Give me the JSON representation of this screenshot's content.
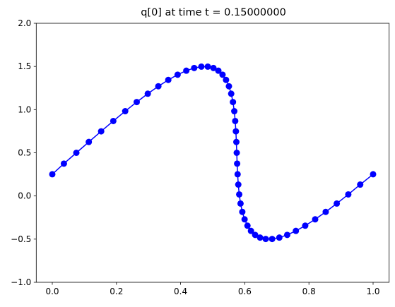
{
  "chart_data": {
    "type": "line",
    "title": "q[0] at time t =     0.15000000",
    "xlim": [
      -0.05,
      1.05
    ],
    "ylim": [
      -1.0,
      2.0
    ],
    "xticks": [
      {
        "value": 0.0,
        "label": "0.0"
      },
      {
        "value": 0.2,
        "label": "0.2"
      },
      {
        "value": 0.4,
        "label": "0.4"
      },
      {
        "value": 0.6,
        "label": "0.6"
      },
      {
        "value": 0.8,
        "label": "0.8"
      },
      {
        "value": 1.0,
        "label": "1.0"
      }
    ],
    "yticks": [
      {
        "value": -1.0,
        "label": "−1.0"
      },
      {
        "value": -0.5,
        "label": "−0.5"
      },
      {
        "value": 0.0,
        "label": "0.0"
      },
      {
        "value": 0.5,
        "label": "0.5"
      },
      {
        "value": 1.0,
        "label": "1.0"
      },
      {
        "value": 1.5,
        "label": "1.5"
      },
      {
        "value": 2.0,
        "label": "2.0"
      }
    ],
    "grid": false,
    "x": [
      0.0,
      0.0362,
      0.075,
      0.1138,
      0.1523,
      0.1902,
      0.2273,
      0.2632,
      0.2977,
      0.3306,
      0.3616,
      0.3907,
      0.4177,
      0.4423,
      0.4647,
      0.4847,
      0.5023,
      0.5177,
      0.5307,
      0.5416,
      0.5506,
      0.5577,
      0.5632,
      0.5673,
      0.5702,
      0.5723,
      0.5738,
      0.575,
      0.5762,
      0.5777,
      0.5798,
      0.5827,
      0.5868,
      0.5923,
      0.5994,
      0.6084,
      0.6193,
      0.6323,
      0.6477,
      0.6653,
      0.6853,
      0.7077,
      0.7323,
      0.7593,
      0.7884,
      0.8194,
      0.8523,
      0.8868,
      0.9227,
      0.9598,
      1.0
    ],
    "series": [
      {
        "color": "#0000ff",
        "values": [
          0.2513,
          0.3747,
          0.5,
          0.6253,
          0.7487,
          0.8681,
          0.9818,
          1.0878,
          1.1845,
          1.2705,
          1.3443,
          1.4048,
          1.4511,
          1.4823,
          1.498,
          1.498,
          1.4823,
          1.4511,
          1.4048,
          1.3443,
          1.2705,
          1.1845,
          1.0878,
          0.9818,
          0.8681,
          0.7487,
          0.6253,
          0.5,
          0.3747,
          0.2513,
          0.1319,
          0.0182,
          -0.0878,
          -0.1845,
          -0.2705,
          -0.3443,
          -0.4048,
          -0.4511,
          -0.4823,
          -0.498,
          -0.498,
          -0.4823,
          -0.4511,
          -0.4048,
          -0.3443,
          -0.2705,
          -0.1845,
          -0.0878,
          0.0182,
          0.1319,
          0.2513
        ]
      }
    ]
  }
}
